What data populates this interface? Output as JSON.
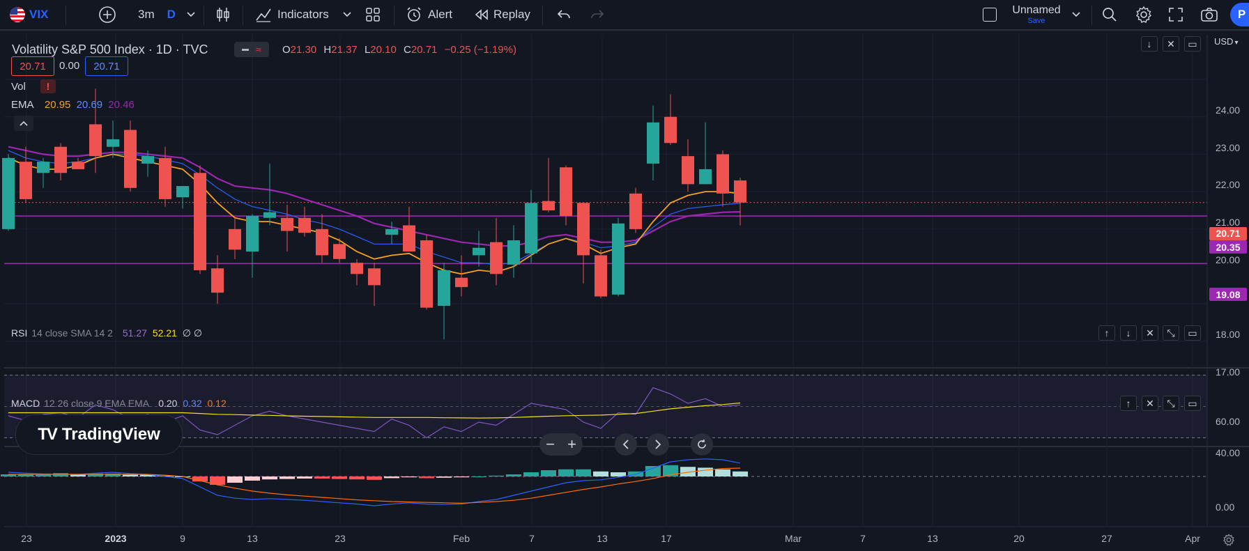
{
  "toolbar": {
    "symbol": "VIX",
    "interval": "3m",
    "interval_unit": "D",
    "indicators_label": "Indicators",
    "alert_label": "Alert",
    "replay_label": "Replay",
    "layout_name": "Unnamed",
    "layout_save": "Save",
    "publish_partial": "P"
  },
  "legend": {
    "title": "Volatility S&P 500 Index · 1D · TVC",
    "o_label": "O",
    "o_val": "21.30",
    "h_label": "H",
    "h_val": "21.37",
    "l_label": "L",
    "l_val": "20.10",
    "c_label": "C",
    "c_val": "20.71",
    "change": "−0.25 (−1.19%)",
    "bid": "20.71",
    "spread": "0.00",
    "ask": "20.71",
    "vol_label": "Vol",
    "ema_label": "EMA",
    "ema_v1": "20.95",
    "ema_v2": "20.69",
    "ema_v3": "20.46"
  },
  "rsi": {
    "label": "RSI",
    "params": "14 close SMA 14 2",
    "v1": "51.27",
    "v2": "52.21",
    "v3": "∅ ∅"
  },
  "macd": {
    "label": "MACD",
    "params": "12 26 close 9 EMA EMA",
    "v1": "0.20",
    "v2": "0.32",
    "v3": "0.12"
  },
  "price_axis": {
    "currency": "USD",
    "ticks": [
      "24.00",
      "23.00",
      "22.00",
      "21.00",
      "20.00",
      "18.00",
      "17.00"
    ],
    "last_price": "20.71",
    "line1": "20.35",
    "line2": "19.08",
    "rsi_ticks": [
      "60.00",
      "40.00"
    ],
    "macd_ticks": [
      "0.00"
    ]
  },
  "time_axis": [
    "23",
    "2023",
    "9",
    "13",
    "23",
    "Feb",
    "7",
    "13",
    "17",
    "Mar",
    "7",
    "13",
    "20",
    "27",
    "Apr"
  ],
  "watermark": "TradingView",
  "colors": {
    "up": "#26a69a",
    "down": "#ef5350",
    "ema_fast": "#f7a21b",
    "ema_mid": "#2962ff",
    "ema_slow": "#9c27b0",
    "hline": "#9c27b0",
    "bg": "#131722"
  },
  "chart_data": {
    "type": "candlestick",
    "title": "Volatility S&P 500 Index · 1D · TVC",
    "candles": [
      {
        "o": 20.0,
        "h": 22.0,
        "l": 19.95,
        "c": 21.9
      },
      {
        "o": 21.8,
        "h": 22.2,
        "l": 20.7,
        "c": 20.8
      },
      {
        "o": 21.5,
        "h": 21.9,
        "l": 21.1,
        "c": 21.8
      },
      {
        "o": 22.2,
        "h": 22.3,
        "l": 21.3,
        "c": 21.5
      },
      {
        "o": 21.8,
        "h": 21.9,
        "l": 21.6,
        "c": 21.6
      },
      {
        "o": 22.8,
        "h": 23.75,
        "l": 21.5,
        "c": 21.95
      },
      {
        "o": 22.2,
        "h": 22.9,
        "l": 21.9,
        "c": 22.4
      },
      {
        "o": 22.65,
        "h": 22.9,
        "l": 21.0,
        "c": 21.1
      },
      {
        "o": 21.75,
        "h": 22.1,
        "l": 21.4,
        "c": 21.95
      },
      {
        "o": 21.9,
        "h": 22.2,
        "l": 20.6,
        "c": 20.8
      },
      {
        "o": 20.85,
        "h": 21.15,
        "l": 20.55,
        "c": 21.15
      },
      {
        "o": 21.5,
        "h": 21.7,
        "l": 18.8,
        "c": 18.9
      },
      {
        "o": 18.95,
        "h": 19.3,
        "l": 18.0,
        "c": 18.3
      },
      {
        "o": 20.0,
        "h": 20.3,
        "l": 19.2,
        "c": 19.45
      },
      {
        "o": 19.4,
        "h": 20.4,
        "l": 18.7,
        "c": 20.35
      },
      {
        "o": 20.3,
        "h": 21.75,
        "l": 20.1,
        "c": 20.45
      },
      {
        "o": 20.3,
        "h": 20.65,
        "l": 19.4,
        "c": 19.95
      },
      {
        "o": 20.3,
        "h": 20.6,
        "l": 19.8,
        "c": 19.9
      },
      {
        "o": 20.0,
        "h": 20.4,
        "l": 19.1,
        "c": 19.3
      },
      {
        "o": 19.6,
        "h": 19.75,
        "l": 19.1,
        "c": 19.2
      },
      {
        "o": 19.1,
        "h": 19.2,
        "l": 18.5,
        "c": 18.8
      },
      {
        "o": 18.95,
        "h": 19.1,
        "l": 17.95,
        "c": 18.5
      },
      {
        "o": 19.85,
        "h": 20.2,
        "l": 19.6,
        "c": 20.0
      },
      {
        "o": 20.1,
        "h": 20.6,
        "l": 19.4,
        "c": 19.4
      },
      {
        "o": 19.7,
        "h": 19.85,
        "l": 17.85,
        "c": 17.9
      },
      {
        "o": 17.95,
        "h": 19.1,
        "l": 17.05,
        "c": 18.9
      },
      {
        "o": 18.7,
        "h": 19.3,
        "l": 18.2,
        "c": 18.45
      },
      {
        "o": 19.3,
        "h": 19.95,
        "l": 19.0,
        "c": 19.5
      },
      {
        "o": 19.65,
        "h": 20.3,
        "l": 18.5,
        "c": 18.8
      },
      {
        "o": 19.05,
        "h": 20.1,
        "l": 18.7,
        "c": 19.7
      },
      {
        "o": 19.35,
        "h": 21.05,
        "l": 19.1,
        "c": 20.7
      },
      {
        "o": 20.75,
        "h": 21.9,
        "l": 20.45,
        "c": 20.5
      },
      {
        "o": 21.65,
        "h": 21.7,
        "l": 20.1,
        "c": 20.35
      },
      {
        "o": 20.7,
        "h": 20.7,
        "l": 18.55,
        "c": 19.3
      },
      {
        "o": 19.3,
        "h": 19.45,
        "l": 18.15,
        "c": 18.2
      },
      {
        "o": 18.25,
        "h": 20.3,
        "l": 18.2,
        "c": 20.15
      },
      {
        "o": 20.95,
        "h": 21.1,
        "l": 19.9,
        "c": 20.0
      },
      {
        "o": 21.75,
        "h": 23.3,
        "l": 21.3,
        "c": 22.85
      },
      {
        "o": 23.0,
        "h": 23.6,
        "l": 22.25,
        "c": 22.3
      },
      {
        "o": 21.95,
        "h": 22.4,
        "l": 21.0,
        "c": 21.2
      },
      {
        "o": 21.2,
        "h": 22.85,
        "l": 21.25,
        "c": 21.6
      },
      {
        "o": 22.0,
        "h": 22.1,
        "l": 20.6,
        "c": 20.95
      },
      {
        "o": 21.3,
        "h": 21.37,
        "l": 20.1,
        "c": 20.71
      }
    ],
    "ema_fast": [
      21.9,
      21.7,
      21.6,
      21.6,
      21.7,
      21.9,
      22.0,
      21.9,
      21.8,
      21.7,
      21.6,
      21.2,
      20.7,
      20.3,
      20.2,
      20.2,
      20.1,
      20.0,
      19.9,
      19.7,
      19.4,
      19.2,
      19.3,
      19.35,
      19.1,
      18.9,
      18.8,
      18.9,
      18.85,
      19.0,
      19.3,
      19.6,
      19.75,
      19.6,
      19.35,
      19.5,
      19.6,
      20.2,
      20.7,
      20.9,
      21.0,
      21.0,
      20.95
    ],
    "ema_mid": [
      22.1,
      21.9,
      21.8,
      21.75,
      21.8,
      21.9,
      22.0,
      22.0,
      21.95,
      21.85,
      21.75,
      21.45,
      21.1,
      20.8,
      20.6,
      20.5,
      20.4,
      20.25,
      20.15,
      20.0,
      19.8,
      19.6,
      19.6,
      19.6,
      19.4,
      19.25,
      19.1,
      19.1,
      19.05,
      19.1,
      19.35,
      19.6,
      19.75,
      19.65,
      19.5,
      19.55,
      19.65,
      20.05,
      20.4,
      20.55,
      20.6,
      20.65,
      20.69
    ],
    "ema_slow": [
      22.2,
      22.1,
      22.0,
      21.95,
      21.95,
      22.0,
      22.05,
      22.05,
      22.0,
      21.95,
      21.9,
      21.65,
      21.35,
      21.15,
      21.1,
      21.05,
      20.95,
      20.8,
      20.65,
      20.5,
      20.35,
      20.15,
      20.05,
      19.95,
      19.85,
      19.75,
      19.65,
      19.6,
      19.55,
      19.55,
      19.65,
      19.8,
      19.85,
      19.75,
      19.65,
      19.65,
      19.7,
      19.95,
      20.2,
      20.35,
      20.4,
      20.45,
      20.46
    ],
    "hlines": [
      20.35,
      19.08
    ],
    "rsi": [
      44,
      41,
      45,
      46,
      43,
      51,
      48,
      42,
      45,
      40,
      44,
      35,
      32,
      38,
      44,
      47,
      44,
      42,
      40,
      38,
      36,
      34,
      42,
      38,
      30,
      37,
      34,
      40,
      38,
      45,
      52,
      50,
      48,
      40,
      36,
      46,
      45,
      62,
      58,
      52,
      55,
      50,
      51
    ],
    "rsi_sma": [
      46,
      46,
      46,
      46,
      46,
      46,
      46,
      46,
      46,
      46,
      46,
      45.5,
      45,
      44.8,
      44.5,
      44.3,
      44,
      43.8,
      43.6,
      43.4,
      43.2,
      43,
      43,
      43,
      43,
      42.8,
      42.7,
      42.6,
      42.7,
      43,
      43.4,
      43.8,
      44.1,
      44.3,
      44.5,
      45,
      45.5,
      47,
      48.5,
      49.5,
      50.5,
      51.2,
      52.2
    ],
    "macd_hist": [
      0.05,
      0.06,
      0.07,
      0.08,
      0.06,
      0.07,
      0.07,
      0.05,
      0.04,
      0.02,
      0.0,
      -0.12,
      -0.2,
      -0.15,
      -0.1,
      -0.07,
      -0.06,
      -0.05,
      -0.05,
      -0.06,
      -0.07,
      -0.08,
      -0.04,
      -0.02,
      -0.04,
      -0.03,
      -0.02,
      0.0,
      0.02,
      0.05,
      0.1,
      0.15,
      0.17,
      0.17,
      0.12,
      0.1,
      0.12,
      0.25,
      0.27,
      0.23,
      0.21,
      0.17,
      0.12
    ],
    "macd_line": [
      0.1,
      0.08,
      0.06,
      0.05,
      0.05,
      0.08,
      0.1,
      0.07,
      0.05,
      0.0,
      -0.05,
      -0.25,
      -0.45,
      -0.52,
      -0.55,
      -0.53,
      -0.55,
      -0.57,
      -0.6,
      -0.63,
      -0.66,
      -0.7,
      -0.66,
      -0.63,
      -0.66,
      -0.67,
      -0.66,
      -0.6,
      -0.55,
      -0.45,
      -0.35,
      -0.25,
      -0.15,
      -0.1,
      -0.08,
      -0.02,
      0.05,
      0.2,
      0.35,
      0.4,
      0.42,
      0.4,
      0.32
    ],
    "macd_signal": [
      0.05,
      0.05,
      0.05,
      0.05,
      0.05,
      0.05,
      0.05,
      0.05,
      0.05,
      0.03,
      0.0,
      -0.1,
      -0.2,
      -0.28,
      -0.35,
      -0.4,
      -0.44,
      -0.47,
      -0.5,
      -0.53,
      -0.56,
      -0.58,
      -0.6,
      -0.61,
      -0.62,
      -0.63,
      -0.64,
      -0.62,
      -0.6,
      -0.57,
      -0.52,
      -0.45,
      -0.38,
      -0.31,
      -0.25,
      -0.18,
      -0.12,
      -0.05,
      0.04,
      0.1,
      0.15,
      0.19,
      0.2
    ]
  }
}
